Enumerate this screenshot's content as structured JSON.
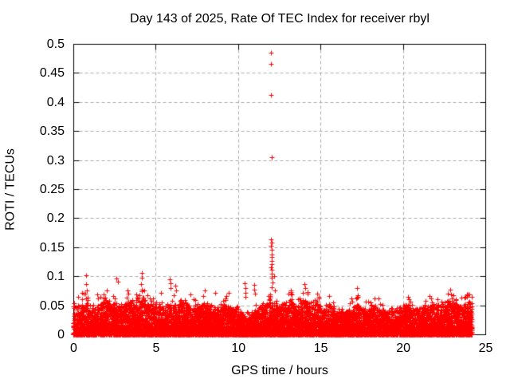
{
  "chart_data": {
    "type": "scatter",
    "title": "Day 143 of 2025, Rate Of TEC Index for receiver rbyl",
    "xlabel": "GPS time / hours",
    "ylabel": "ROTI / TECUs",
    "xlim": [
      0,
      25
    ],
    "ylim": [
      0,
      0.5
    ],
    "x_ticks": [
      0,
      5,
      10,
      15,
      20,
      25
    ],
    "x_tick_labels": [
      "0",
      "5",
      "10",
      "15",
      "20",
      "25"
    ],
    "y_ticks": [
      0,
      0.05,
      0.1,
      0.15,
      0.2,
      0.25,
      0.3,
      0.35,
      0.4,
      0.45,
      0.5
    ],
    "y_tick_labels": [
      "0",
      "0.05",
      "0.1",
      "0.15",
      "0.2",
      "0.25",
      "0.3",
      "0.35",
      "0.4",
      "0.45",
      "0.5"
    ],
    "grid": true,
    "legend": "none",
    "marker": {
      "shape": "plus",
      "size": 7,
      "color": "#ff0000"
    },
    "colors": {
      "marker": "#ff0000",
      "grid": "#aaaaaa",
      "axis": "#000000",
      "text": "#000000",
      "background": "#ffffff"
    },
    "outliers": [
      [
        11.97,
        0.485
      ],
      [
        12.0,
        0.465
      ],
      [
        12.0,
        0.412
      ],
      [
        12.02,
        0.305
      ],
      [
        12.0,
        0.163
      ],
      [
        12.03,
        0.158
      ],
      [
        12.0,
        0.152
      ],
      [
        12.05,
        0.146
      ],
      [
        12.02,
        0.138
      ],
      [
        12.06,
        0.133
      ],
      [
        12.02,
        0.126
      ],
      [
        12.05,
        0.121
      ],
      [
        12.0,
        0.116
      ],
      [
        12.05,
        0.111
      ],
      [
        12.03,
        0.105
      ],
      [
        12.06,
        0.097
      ],
      [
        12.1,
        0.089
      ],
      [
        12.05,
        0.081
      ],
      [
        12.2,
        0.1
      ],
      [
        12.22,
        0.076
      ]
    ],
    "peaks": [
      [
        0.3,
        0.065
      ],
      [
        0.55,
        0.072
      ],
      [
        0.76,
        0.086
      ],
      [
        0.78,
        0.102
      ],
      [
        0.8,
        0.076
      ],
      [
        1.45,
        0.068
      ],
      [
        2.05,
        0.076
      ],
      [
        2.62,
        0.096
      ],
      [
        2.7,
        0.091
      ],
      [
        3.3,
        0.076
      ],
      [
        3.35,
        0.07
      ],
      [
        3.8,
        0.068
      ],
      [
        4.12,
        0.086
      ],
      [
        4.15,
        0.106
      ],
      [
        4.15,
        0.097
      ],
      [
        4.18,
        0.077
      ],
      [
        5.3,
        0.072
      ],
      [
        5.85,
        0.095
      ],
      [
        5.88,
        0.088
      ],
      [
        5.92,
        0.08
      ],
      [
        6.2,
        0.084
      ],
      [
        6.25,
        0.076
      ],
      [
        7.1,
        0.068
      ],
      [
        8.0,
        0.076
      ],
      [
        8.6,
        0.072
      ],
      [
        9.3,
        0.066
      ],
      [
        9.45,
        0.071
      ],
      [
        10.42,
        0.088
      ],
      [
        10.45,
        0.08
      ],
      [
        10.44,
        0.072
      ],
      [
        10.46,
        0.064
      ],
      [
        10.97,
        0.085
      ],
      [
        11.0,
        0.077
      ],
      [
        11.02,
        0.07
      ],
      [
        13.2,
        0.075
      ],
      [
        13.25,
        0.068
      ],
      [
        14.0,
        0.086
      ],
      [
        14.05,
        0.079
      ],
      [
        14.2,
        0.073
      ],
      [
        14.8,
        0.07
      ],
      [
        15.5,
        0.066
      ],
      [
        16.9,
        0.062
      ],
      [
        17.2,
        0.079
      ],
      [
        17.25,
        0.065
      ],
      [
        18.5,
        0.062
      ],
      [
        20.3,
        0.064
      ],
      [
        21.6,
        0.066
      ],
      [
        22.87,
        0.077
      ],
      [
        22.9,
        0.068
      ],
      [
        22.95,
        0.062
      ],
      [
        23.8,
        0.064
      ],
      [
        24.05,
        0.068
      ]
    ],
    "dense_band": {
      "description": "dense noise band of ROTI samples; envelope = local top of band in TECUs sampled every 0.25 h",
      "x_start": 0.0,
      "x_end": 24.2,
      "count": 10000,
      "seed": 143,
      "power": 2.3,
      "envelope": {
        "x0": 0,
        "dx": 0.25,
        "values": [
          0.05,
          0.048,
          0.055,
          0.062,
          0.05,
          0.044,
          0.05,
          0.056,
          0.06,
          0.05,
          0.056,
          0.052,
          0.046,
          0.062,
          0.058,
          0.05,
          0.058,
          0.066,
          0.056,
          0.058,
          0.046,
          0.05,
          0.046,
          0.06,
          0.058,
          0.05,
          0.054,
          0.058,
          0.05,
          0.046,
          0.054,
          0.05,
          0.058,
          0.054,
          0.05,
          0.046,
          0.05,
          0.054,
          0.048,
          0.042,
          0.042,
          0.036,
          0.032,
          0.03,
          0.04,
          0.048,
          0.054,
          0.05,
          0.058,
          0.054,
          0.048,
          0.054,
          0.058,
          0.062,
          0.05,
          0.054,
          0.062,
          0.058,
          0.05,
          0.058,
          0.05,
          0.042,
          0.054,
          0.046,
          0.036,
          0.04,
          0.038,
          0.044,
          0.048,
          0.054,
          0.044,
          0.048,
          0.044,
          0.05,
          0.054,
          0.044,
          0.04,
          0.036,
          0.042,
          0.046,
          0.05,
          0.054,
          0.044,
          0.046,
          0.044,
          0.048,
          0.046,
          0.052,
          0.054,
          0.05,
          0.054,
          0.062,
          0.058,
          0.054,
          0.05,
          0.054,
          0.058,
          0.052
        ]
      }
    }
  }
}
